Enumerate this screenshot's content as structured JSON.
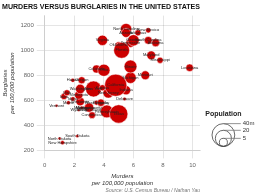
{
  "chart_data": {
    "type": "bubble",
    "title": "MURDERS VERSUS BURGLARIES IN THE UNITED STATES",
    "source": "Source: U.S. Census Bureau / Nathan Yau",
    "xlabel": "Murders\nper 100,000 population",
    "ylabel": "Burglaries\nper 100,000 population",
    "color": "#cc0000",
    "labels": [
      "North Dakota",
      "New Hampshire",
      "South Dakota",
      "Vermont",
      "Maine",
      "Iowa",
      "Wisconsin",
      "Minnesota",
      "Nebraska",
      "Pennsylvania",
      "Rhode Island",
      "Massachusetts",
      "Connecticut",
      "Idaho",
      "Wyoming",
      "Montana",
      "Hawaii",
      "Oregon",
      "West Virginia",
      "Kentucky",
      "Colorado",
      "Ohio",
      "Indiana",
      "Michigan",
      "Illinois",
      "Texas",
      "New Jersey",
      "New York",
      "Washington",
      "California",
      "Virginia",
      "Oklahoma",
      "Tennessee",
      "North Carolina",
      "Arizona",
      "Arkansas",
      "New Mexico",
      "South Carolina",
      "Georgia",
      "Florida",
      "Alabama",
      "Mississippi",
      "Louisiana",
      "Missouri",
      "Maryland",
      "Delaware",
      "Kansas",
      "Utah"
    ],
    "x": [
      1.0,
      1.2,
      2.2,
      0.8,
      1.6,
      1.3,
      2.4,
      2.3,
      2.8,
      4.2,
      3.0,
      3.0,
      3.2,
      1.9,
      2.3,
      2.5,
      1.9,
      2.5,
      3.5,
      3.8,
      3.5,
      4.0,
      5.5,
      5.8,
      5.8,
      5.0,
      4.3,
      3.3,
      2.4,
      4.8,
      3.9,
      5.0,
      5.8,
      5.5,
      5.5,
      6.3,
      7.0,
      7.0,
      6.0,
      5.2,
      7.5,
      7.8,
      9.8,
      6.8,
      7.2,
      5.4,
      3.9,
      1.5
    ],
    "values": [
      295,
      262,
      315,
      558,
      582,
      632,
      592,
      643,
      542,
      512,
      522,
      543,
      482,
      612,
      522,
      542,
      762,
      762,
      582,
      582,
      852,
      842,
      682,
      782,
      872,
      492,
      662,
      692,
      692,
      722,
      1082,
      1042,
      1062,
      1172,
      1142,
      1142,
      1162,
      1082,
      1082,
      1002,
      1062,
      922,
      862,
      802,
      962,
      612,
      702,
      662
    ],
    "size": [
      0.67,
      1.3,
      0.81,
      0.62,
      1.33,
      3.0,
      5.7,
      5.3,
      1.83,
      12.7,
      1.05,
      6.6,
      3.5,
      1.57,
      0.56,
      0.99,
      1.36,
      3.9,
      1.81,
      4.3,
      5.0,
      11.5,
      6.5,
      9.9,
      12.8,
      26.0,
      8.9,
      19.5,
      6.9,
      38.0,
      8.3,
      3.85,
      6.5,
      9.8,
      6.6,
      2.9,
      2.08,
      4.7,
      9.9,
      19.6,
      4.8,
      2.99,
      4.5,
      6.0,
      5.9,
      0.92,
      2.9,
      2.9
    ],
    "size_legend": {
      "title": "Population",
      "ticks": [
        {
          "value": 40,
          "label": "40m"
        },
        {
          "value": 20,
          "label": "20"
        },
        {
          "value": 5,
          "label": "5"
        }
      ]
    },
    "xlim": [
      0,
      10.5
    ],
    "ylim": [
      200,
      1280
    ],
    "xticks": [
      0,
      2,
      4,
      6,
      8,
      10
    ],
    "yticks": [
      200,
      400,
      600,
      800,
      1000,
      1200
    ],
    "grid": true
  }
}
